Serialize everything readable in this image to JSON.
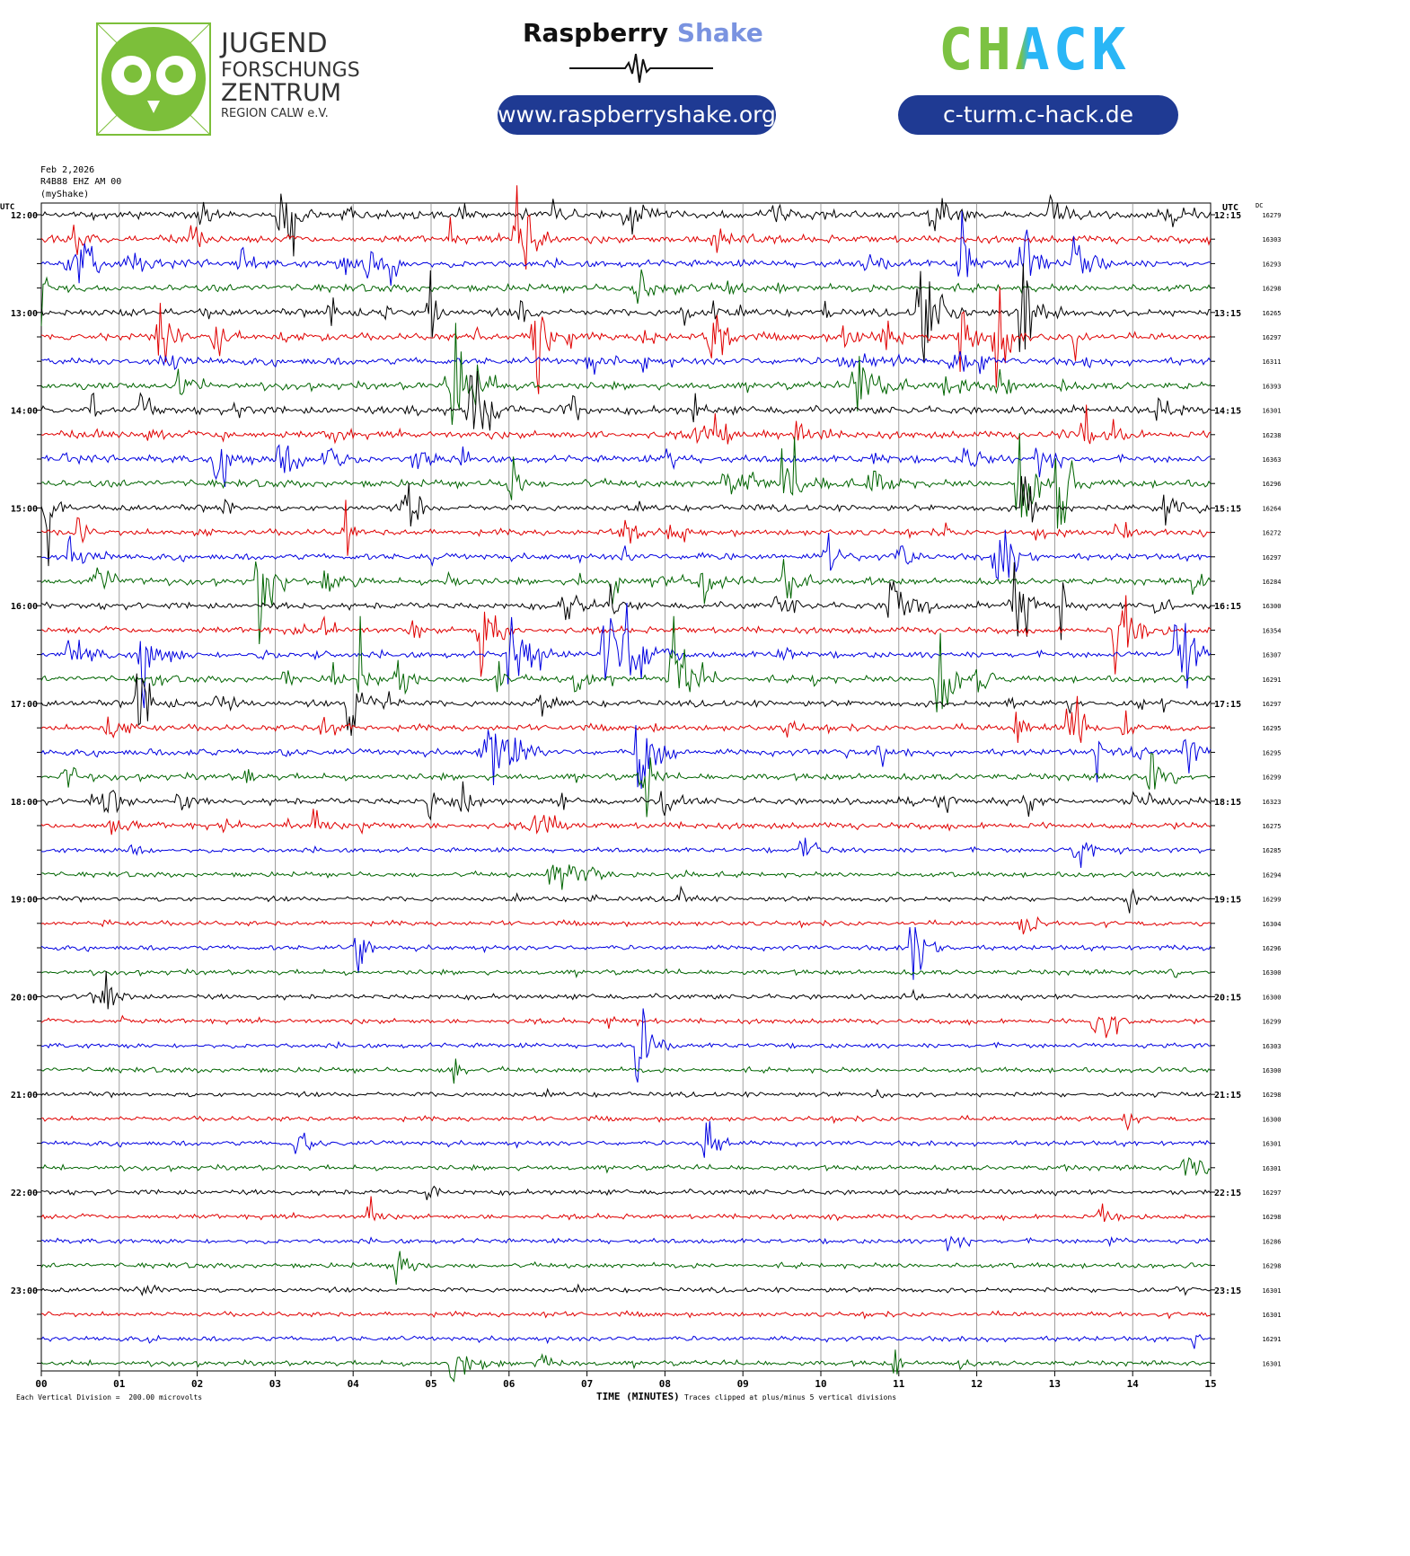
{
  "header": {
    "jfz": {
      "line1": "JUGEND",
      "line2": "FORSCHUNGS",
      "line3": "ZENTRUM",
      "line4": "REGION CALW e.V.",
      "icon": "owl-logo-icon",
      "color": "#7cbf3a"
    },
    "rs": {
      "name_a": "Raspberry",
      "name_b": "Shake",
      "url": "www.raspberryshake.org",
      "color_a": "#111111",
      "color_b": "#7a93e0"
    },
    "chack": {
      "word": "CHACK",
      "url": "c-turm.c-hack.de",
      "color_green": "#7cc242",
      "color_blue": "#29b6f6"
    },
    "pill_color": "#1f3a93"
  },
  "meta": {
    "date": "Feb 2,2026",
    "station": "R4B88 EHZ AM 00",
    "source": "(myShake)"
  },
  "chart_data": {
    "type": "line",
    "title": "",
    "left_axis_label": "UTC",
    "right_axis_label": "UTC",
    "dc_label": "DC",
    "xlabel": "TIME (MINUTES)",
    "xlim": [
      0,
      15
    ],
    "x_ticks": [
      "00",
      "01",
      "02",
      "03",
      "04",
      "05",
      "06",
      "07",
      "08",
      "09",
      "10",
      "11",
      "12",
      "13",
      "14",
      "15"
    ],
    "left_hour_labels": [
      "12:00",
      "13:00",
      "14:00",
      "15:00",
      "16:00",
      "17:00",
      "18:00",
      "19:00",
      "20:00",
      "21:00",
      "22:00",
      "23:00"
    ],
    "right_hour_labels": [
      "12:15",
      "13:15",
      "14:15",
      "15:15",
      "16:15",
      "17:15",
      "18:15",
      "19:15",
      "20:15",
      "21:15",
      "22:15",
      "23:15"
    ],
    "dc_values": [
      "16279",
      "16303",
      "16293",
      "16298",
      "16265",
      "16297",
      "16311",
      "16393",
      "16301",
      "16238",
      "16363",
      "16296",
      "16264",
      "16272",
      "16297",
      "16284",
      "16300",
      "16354",
      "16307",
      "16291",
      "16297",
      "16295",
      "16295",
      "16299",
      "16323",
      "16275",
      "16285",
      "16294",
      "16299",
      "16304",
      "16296",
      "16300",
      "16300",
      "16299",
      "16303",
      "16300",
      "16298",
      "16300",
      "16301",
      "16301",
      "16297",
      "16298",
      "16286",
      "16298",
      "16301",
      "16301",
      "16291",
      "16301"
    ],
    "trace_colors": [
      "#000000",
      "#e00000",
      "#0000e0",
      "#006400"
    ],
    "traces_per_hour": 4,
    "minutes_per_trace": 15,
    "footer_left": "Each Vertical Division =  200.00 microvolts",
    "footer_right": "Traces clipped at plus/minus 5 vertical divisions"
  }
}
